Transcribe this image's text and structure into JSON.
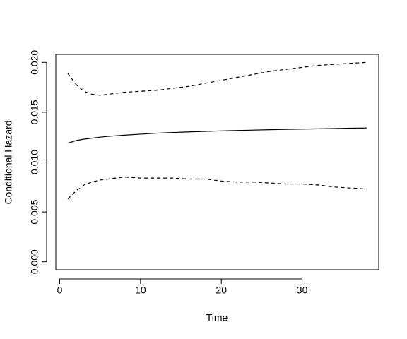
{
  "chart_data": {
    "type": "line",
    "xlabel": "Time",
    "ylabel": "Conditional Hazard",
    "x": [
      1,
      2,
      3,
      4,
      5,
      6,
      8,
      10,
      12,
      14,
      16,
      18,
      20,
      22,
      24,
      26,
      28,
      30,
      32,
      34,
      36,
      38
    ],
    "series": [
      {
        "color": "#000000",
        "linestyle": "solid",
        "values": [
          0.0119,
          0.01215,
          0.0123,
          0.0124,
          0.0125,
          0.01258,
          0.0127,
          0.0128,
          0.0129,
          0.01297,
          0.01303,
          0.01308,
          0.01313,
          0.01317,
          0.01321,
          0.01325,
          0.01328,
          0.01331,
          0.01334,
          0.01337,
          0.0134,
          0.01342
        ]
      },
      {
        "color": "#000000",
        "linestyle": "dashed",
        "values": [
          0.0189,
          0.0178,
          0.0171,
          0.0168,
          0.0167,
          0.0168,
          0.017,
          0.0171,
          0.0172,
          0.0174,
          0.0176,
          0.0179,
          0.0182,
          0.0185,
          0.0188,
          0.0191,
          0.0193,
          0.0195,
          0.0197,
          0.0198,
          0.0199,
          0.02
        ]
      },
      {
        "color": "#000000",
        "linestyle": "dashed",
        "values": [
          0.0063,
          0.0071,
          0.0077,
          0.008,
          0.0082,
          0.0083,
          0.0085,
          0.0084,
          0.0084,
          0.0084,
          0.0083,
          0.0083,
          0.0081,
          0.008,
          0.008,
          0.0079,
          0.0078,
          0.0078,
          0.0077,
          0.0075,
          0.0074,
          0.0073
        ]
      }
    ],
    "xlim": [
      -0.48,
      39.48
    ],
    "xticks": [
      0,
      10,
      20,
      30
    ],
    "ylim": [
      -0.0008,
      0.0208
    ],
    "yticks": [
      {
        "value": 0,
        "label": "0.000"
      },
      {
        "value": 0.005,
        "label": "0.005"
      },
      {
        "value": 0.01,
        "label": "0.010"
      },
      {
        "value": 0.015,
        "label": "0.015"
      },
      {
        "value": 0.02,
        "label": "0.020"
      }
    ],
    "grid": false
  }
}
